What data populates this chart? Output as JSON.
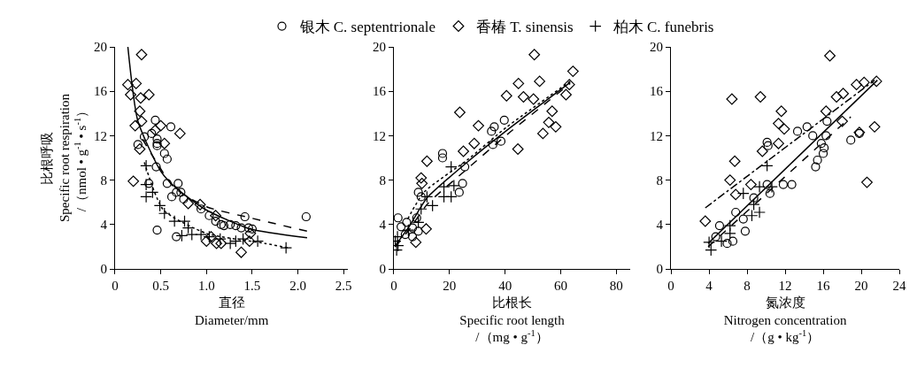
{
  "chart_data": [
    {
      "type": "scatter",
      "legend": "top",
      "xlabel": "直径\nDiameter/mm",
      "ylabel": "比根呼吸\nSpecific root respiration\n/（nmol • g$^{-1}$ • s$^{-1}$）",
      "xlim": [
        0,
        2.55
      ],
      "xticks": [
        0,
        0.5,
        {
          "value": 1,
          "label": "1.0"
        },
        1.5,
        {
          "value": 2,
          "label": "2.0"
        },
        2.5
      ],
      "ylim": [
        0,
        20
      ],
      "yticks": [
        0,
        4,
        8,
        12,
        16,
        20
      ],
      "series": [
        {
          "name": "银木 C. septentrionale",
          "color": "#000000",
          "marker": "circle",
          "x": [
            0.44,
            0.61,
            0.4,
            0.46,
            0.46,
            0.46,
            0.54,
            0.57,
            0.45,
            0.37,
            0.69,
            0.57,
            0.72,
            0.67,
            0.62,
            0.75,
            0.46,
            0.67,
            0.94,
            1.03,
            1.1,
            1.16,
            1.19,
            1.26,
            1.32,
            1.38,
            1.42,
            1.46,
            1.5,
            2.09,
            0.25,
            0.32
          ],
          "values": [
            13.4,
            12.8,
            12.2,
            11.7,
            11.3,
            11.1,
            10.4,
            9.9,
            9.2,
            7.7,
            7.7,
            7.7,
            6.9,
            6.9,
            6.5,
            6.3,
            3.5,
            2.9,
            5.4,
            4.8,
            4.3,
            4.0,
            3.9,
            4.0,
            3.9,
            3.7,
            4.7,
            3.7,
            3.6,
            4.7,
            11.2,
            11.9
          ]
        },
        {
          "name": "香椿 T. sinensis",
          "color": "#000000",
          "marker": "diamond",
          "x": [
            0.29,
            0.14,
            0.23,
            0.17,
            0.28,
            0.37,
            0.27,
            0.29,
            0.22,
            0.5,
            0.44,
            0.71,
            0.54,
            0.27,
            0.2,
            0.8,
            0.93,
            1.1,
            1.0,
            1.05,
            1.11,
            1.16,
            1.38,
            1.47,
            1.48
          ],
          "values": [
            19.3,
            16.6,
            16.7,
            15.7,
            15.4,
            15.7,
            14.2,
            13.3,
            12.9,
            12.9,
            12.5,
            12.2,
            11.3,
            10.8,
            7.9,
            5.9,
            5.8,
            4.8,
            2.5,
            2.9,
            2.3,
            2.3,
            1.5,
            2.5,
            3.2
          ]
        },
        {
          "name": "柏木 C. funebris",
          "color": "#000000",
          "marker": "cross",
          "x": [
            0.34,
            0.34,
            0.34,
            0.41,
            0.49,
            0.54,
            0.65,
            0.76,
            0.8,
            0.73,
            0.84,
            0.94,
            1.03,
            1.15,
            1.26,
            1.32,
            1.4,
            1.56,
            1.87
          ],
          "values": [
            9.3,
            7.6,
            6.5,
            6.9,
            5.7,
            5.0,
            4.3,
            4.3,
            3.7,
            3.0,
            3.1,
            3.1,
            2.9,
            2.7,
            2.3,
            2.5,
            2.7,
            2.5,
            1.9
          ]
        },
        {
          "type": "line",
          "color": "#000000",
          "line_style": "solid",
          "x": [
            0.14,
            0.25,
            0.5,
            0.68,
            1.0,
            1.48,
            2.1
          ],
          "values": [
            20,
            13.3,
            8.8,
            7.2,
            5.3,
            3.6,
            2.8
          ]
        },
        {
          "type": "line",
          "color": "#000000",
          "line_style": "dashed",
          "x": [
            0.3,
            0.65,
            1.0,
            1.48,
            2.1
          ],
          "values": [
            11.7,
            7.3,
            5.6,
            4.6,
            3.4
          ]
        },
        {
          "type": "line",
          "color": "#000000",
          "line_style": "dotted",
          "x": [
            0.32,
            0.53,
            1.0,
            1.64,
            1.89
          ],
          "values": [
            9.6,
            5.3,
            3.2,
            2.3,
            1.9
          ]
        }
      ]
    },
    {
      "type": "scatter",
      "xlabel": "比根长\nSpecific root length\n/（mg • g$^{-1}$）",
      "xlim": [
        0,
        85
      ],
      "xticks": [
        0,
        20,
        40,
        60,
        80
      ],
      "ylim": [
        0,
        20
      ],
      "yticks": [
        0,
        4,
        8,
        12,
        16,
        20
      ],
      "series": [
        {
          "color": "#000000",
          "marker": "circle",
          "x": [
            1.5,
            2.6,
            4.6,
            6.7,
            8.2,
            8.8,
            9.8,
            17.5,
            17.5,
            25.5,
            24.7,
            23.5,
            35.1,
            36.1,
            35.6,
            38.5,
            39.7,
            6.7,
            8.8,
            4.1
          ],
          "values": [
            4.6,
            3.8,
            4.2,
            3.7,
            4.6,
            6.9,
            6.5,
            10.4,
            10.0,
            9.2,
            7.7,
            6.9,
            12.4,
            12.8,
            11.2,
            11.5,
            13.4,
            2.9,
            3.4,
            3.1
          ]
        },
        {
          "color": "#000000",
          "marker": "diamond",
          "x": [
            50.5,
            64.4,
            44.8,
            52.4,
            40.5,
            46.6,
            50.2,
            61.9,
            63.1,
            23.7,
            30.4,
            56.9,
            55.7,
            58.2,
            53.6,
            44.6,
            28.9,
            25.0,
            11.9,
            9.8,
            10.1,
            11.6,
            7.9
          ],
          "values": [
            19.3,
            17.8,
            16.7,
            16.9,
            15.6,
            15.5,
            15.3,
            15.7,
            16.6,
            14.1,
            12.9,
            14.2,
            13.2,
            12.8,
            12.2,
            10.8,
            11.3,
            10.6,
            9.7,
            8.2,
            7.7,
            3.6,
            2.4
          ]
        },
        {
          "color": "#000000",
          "marker": "cross",
          "x": [
            0.5,
            1.0,
            1.3,
            1.5,
            5.2,
            8.8,
            11.9,
            13.9,
            18.0,
            18.0,
            20.6,
            21.6,
            20.6,
            9.8
          ],
          "values": [
            2.5,
            1.7,
            2.9,
            2.1,
            3.5,
            4.2,
            6.5,
            5.7,
            7.4,
            6.5,
            6.5,
            7.5,
            9.2,
            5.4
          ]
        },
        {
          "type": "line",
          "color": "#000000",
          "line_style": "solid",
          "x": [
            0.5,
            5.7,
            11.9,
            26.3,
            40.7,
            63.4
          ],
          "values": [
            2.1,
            3.9,
            6.4,
            9.6,
            12.5,
            16.8
          ]
        },
        {
          "type": "line",
          "color": "#000000",
          "line_style": "dashed",
          "x": [
            0.5,
            5.7,
            11.9,
            26.3,
            40.7,
            63.4
          ],
          "values": [
            2.0,
            3.6,
            5.8,
            9.0,
            12.1,
            16.7
          ]
        },
        {
          "type": "line",
          "color": "#000000",
          "line_style": "dotted",
          "x": [
            5.0,
            10.8,
            26.3,
            40.7,
            63.4
          ],
          "values": [
            4.5,
            6.9,
            9.8,
            12.8,
            16.9
          ]
        }
      ]
    },
    {
      "type": "scatter",
      "xlabel": "氮浓度\nNitrogen concentration\n/（g • kg$^{-1}$）",
      "xlim": [
        0,
        24
      ],
      "xticks": [
        0,
        4,
        8,
        12,
        16,
        20,
        24
      ],
      "ylim": [
        0,
        20
      ],
      "yticks": [
        0,
        4,
        8,
        12,
        16,
        20
      ],
      "series": [
        {
          "color": "#000000",
          "marker": "circle",
          "x": [
            13.3,
            14.3,
            14.9,
            16.4,
            16.3,
            15.8,
            16.1,
            16.0,
            15.4,
            15.2,
            18.9,
            19.8,
            10.1,
            10.2,
            10.1,
            11.8,
            12.7,
            10.4,
            8.7,
            6.8,
            7.6,
            5.1,
            7.8,
            6.5,
            4.7,
            5.9
          ],
          "values": [
            12.4,
            12.8,
            12.0,
            13.3,
            12.0,
            11.3,
            10.9,
            10.4,
            9.8,
            9.2,
            11.6,
            12.2,
            11.4,
            11.1,
            7.6,
            7.6,
            7.6,
            6.8,
            6.4,
            5.1,
            4.5,
            3.9,
            3.4,
            2.5,
            2.9,
            2.3
          ]
        },
        {
          "color": "#000000",
          "marker": "diamond",
          "x": [
            16.7,
            20.3,
            19.5,
            21.6,
            17.4,
            18.1,
            6.4,
            9.4,
            11.6,
            16.3,
            11.3,
            11.9,
            18.0,
            21.4,
            19.8,
            9.6,
            11.3,
            6.7,
            6.2,
            8.4,
            6.8,
            20.6,
            3.6
          ],
          "values": [
            19.2,
            16.8,
            16.6,
            16.9,
            15.5,
            15.8,
            15.3,
            15.5,
            14.2,
            14.2,
            13.1,
            12.6,
            13.3,
            12.8,
            12.3,
            10.6,
            11.3,
            9.7,
            8.0,
            7.6,
            6.7,
            7.8,
            4.3
          ]
        },
        {
          "color": "#000000",
          "marker": "cross",
          "x": [
            4.0,
            4.2,
            5.3,
            6.2,
            6.2,
            7.6,
            8.5,
            9.3,
            8.7,
            9.3,
            10.1,
            10.6
          ],
          "values": [
            2.4,
            1.7,
            2.5,
            3.9,
            3.2,
            6.8,
            4.8,
            5.1,
            5.8,
            7.4,
            9.3,
            7.4
          ]
        },
        {
          "type": "line",
          "color": "#000000",
          "line_style": "solid",
          "x": [
            3.9,
            21.7
          ],
          "values": [
            2.3,
            17.0
          ]
        },
        {
          "type": "line",
          "color": "#000000",
          "line_style": "dashed",
          "x": [
            3.9,
            18.9
          ],
          "values": [
            2.0,
            13.7
          ]
        },
        {
          "type": "line",
          "color": "#000000",
          "line_style": "dashdot",
          "x": [
            3.6,
            21.4
          ],
          "values": [
            5.5,
            17.0
          ]
        }
      ]
    }
  ]
}
